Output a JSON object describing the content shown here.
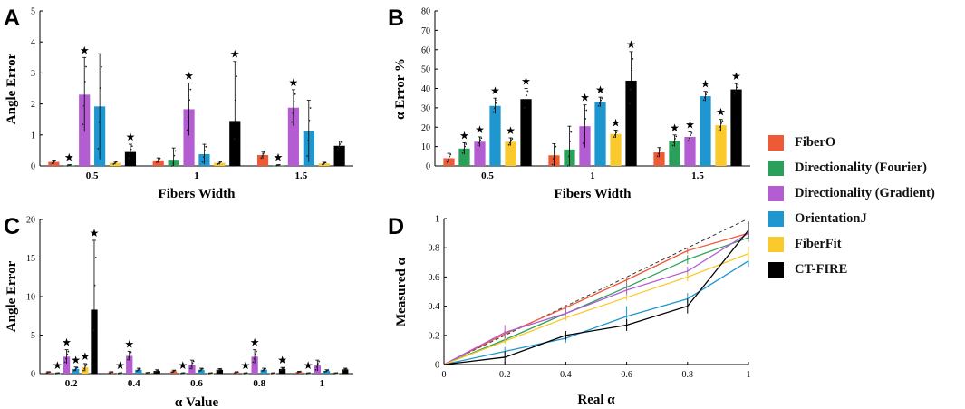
{
  "colors": {
    "FiberO": "#EE5A36",
    "Directionality (Fourier)": "#2BA05B",
    "Directionality (Gradient)": "#B45CD2",
    "OrientationJ": "#1E97D0",
    "FiberFit": "#FAC92C",
    "CT-FIRE": "#000000"
  },
  "legend": [
    "FiberO",
    "Directionality (Fourier)",
    "Directionality (Gradient)",
    "OrientationJ",
    "FiberFit",
    "CT-FIRE"
  ],
  "chart_data": [
    {
      "id": "A",
      "panel_label": "A",
      "type": "bar",
      "xlabel": "Fibers Width",
      "ylabel": "Angle Error",
      "ylim": [
        0,
        5
      ],
      "yticks": [
        0,
        1,
        2,
        3,
        4,
        5
      ],
      "categories": [
        "0.5",
        "1",
        "1.5"
      ],
      "series": [
        {
          "name": "FiberO",
          "values": [
            0.13,
            0.18,
            0.35
          ],
          "errors": [
            0.06,
            0.08,
            0.12
          ],
          "stars": [
            false,
            false,
            false
          ]
        },
        {
          "name": "Directionality (Fourier)",
          "values": [
            0.02,
            0.2,
            0.02
          ],
          "errors": [
            0.02,
            0.38,
            0.02
          ],
          "stars": [
            true,
            false,
            true
          ]
        },
        {
          "name": "Directionality (Gradient)",
          "values": [
            2.3,
            1.83,
            1.88
          ],
          "errors": [
            1.2,
            0.85,
            0.58
          ],
          "stars": [
            true,
            true,
            true
          ]
        },
        {
          "name": "OrientationJ",
          "values": [
            1.92,
            0.38,
            1.12
          ],
          "errors": [
            1.7,
            0.32,
            1.0
          ],
          "stars": [
            false,
            false,
            false
          ]
        },
        {
          "name": "FiberFit",
          "values": [
            0.1,
            0.1,
            0.08
          ],
          "errors": [
            0.05,
            0.05,
            0.04
          ],
          "stars": [
            false,
            false,
            false
          ]
        },
        {
          "name": "CT-FIRE",
          "values": [
            0.45,
            1.45,
            0.65
          ],
          "errors": [
            0.25,
            1.92,
            0.15
          ],
          "stars": [
            true,
            true,
            false
          ]
        }
      ]
    },
    {
      "id": "B",
      "panel_label": "B",
      "type": "bar",
      "xlabel": "Fibers Width",
      "ylabel": "α Error %",
      "ylim": [
        0,
        80
      ],
      "yticks": [
        0,
        10,
        20,
        30,
        40,
        50,
        60,
        70,
        80
      ],
      "categories": [
        "0.5",
        "1",
        "1.5"
      ],
      "series": [
        {
          "name": "FiberO",
          "values": [
            4,
            5.5,
            7
          ],
          "errors": [
            2.5,
            6,
            2.5
          ],
          "stars": [
            false,
            false,
            false
          ]
        },
        {
          "name": "Directionality (Fourier)",
          "values": [
            9,
            8.5,
            13
          ],
          "errors": [
            3,
            12,
            3
          ],
          "stars": [
            true,
            false,
            true
          ]
        },
        {
          "name": "Directionality (Gradient)",
          "values": [
            12.5,
            20.5,
            15
          ],
          "errors": [
            2.5,
            11,
            2.5
          ],
          "stars": [
            true,
            true,
            true
          ]
        },
        {
          "name": "OrientationJ",
          "values": [
            31,
            33,
            36
          ],
          "errors": [
            4,
            2.5,
            2.5
          ],
          "stars": [
            true,
            true,
            true
          ]
        },
        {
          "name": "FiberFit",
          "values": [
            12.5,
            16.5,
            21
          ],
          "errors": [
            2,
            2,
            3
          ],
          "stars": [
            true,
            true,
            true
          ]
        },
        {
          "name": "CT-FIRE",
          "values": [
            34.5,
            44,
            39.5
          ],
          "errors": [
            5.5,
            15,
            3
          ],
          "stars": [
            true,
            true,
            true
          ]
        }
      ]
    },
    {
      "id": "C",
      "panel_label": "C",
      "type": "bar",
      "xlabel": "α Value",
      "ylabel": "Angle Error",
      "ylim": [
        0,
        20
      ],
      "yticks": [
        0,
        5,
        10,
        15,
        20
      ],
      "categories": [
        "0.2",
        "0.4",
        "0.6",
        "0.8",
        "1"
      ],
      "series": [
        {
          "name": "FiberO",
          "values": [
            0.15,
            0.15,
            0.3,
            0.15,
            0.2
          ],
          "errors": [
            0.1,
            0.1,
            0.15,
            0.1,
            0.1
          ],
          "stars": [
            false,
            false,
            false,
            false,
            false
          ]
        },
        {
          "name": "Directionality (Fourier)",
          "values": [
            0.05,
            0.05,
            0.05,
            0.05,
            0.05
          ],
          "errors": [
            0.05,
            0.05,
            0.05,
            0.05,
            0.05
          ],
          "stars": [
            true,
            true,
            true,
            true,
            true
          ]
        },
        {
          "name": "Directionality (Gradient)",
          "values": [
            2.2,
            2.3,
            1.15,
            2.2,
            1.05
          ],
          "errors": [
            0.9,
            0.6,
            0.6,
            0.9,
            0.7
          ],
          "stars": [
            true,
            true,
            false,
            true,
            false
          ]
        },
        {
          "name": "OrientationJ",
          "values": [
            0.6,
            0.5,
            0.5,
            0.5,
            0.35
          ],
          "errors": [
            0.25,
            0.2,
            0.2,
            0.2,
            0.15
          ],
          "stars": [
            true,
            false,
            false,
            false,
            false
          ]
        },
        {
          "name": "FiberFit",
          "values": [
            0.8,
            0.1,
            0.05,
            0.05,
            0.05
          ],
          "errors": [
            0.5,
            0.05,
            0.05,
            0.05,
            0.05
          ],
          "stars": [
            true,
            false,
            false,
            false,
            false
          ]
        },
        {
          "name": "CT-FIRE",
          "values": [
            8.3,
            0.35,
            0.5,
            0.6,
            0.55
          ],
          "errors": [
            9.0,
            0.15,
            0.15,
            0.2,
            0.15
          ],
          "stars": [
            true,
            false,
            false,
            true,
            false
          ]
        }
      ]
    },
    {
      "id": "D",
      "panel_label": "D",
      "type": "line",
      "xlabel": "Real α",
      "ylabel": "Measured α",
      "xlim": [
        0,
        1
      ],
      "ylim": [
        0,
        1
      ],
      "xticks": [
        0,
        0.2,
        0.4,
        0.6,
        0.8,
        1
      ],
      "yticks": [
        0,
        0.2,
        0.4,
        0.6,
        0.8,
        1
      ],
      "x": [
        0,
        0.2,
        0.4,
        0.6,
        0.8,
        1
      ],
      "reference": {
        "name": "identity",
        "values": [
          0,
          0.2,
          0.4,
          0.6,
          0.8,
          1
        ]
      },
      "series": [
        {
          "name": "FiberO",
          "values": [
            0,
            0.21,
            0.39,
            0.58,
            0.78,
            0.9
          ],
          "errors": [
            0,
            0.02,
            0.02,
            0.02,
            0.02,
            0.03
          ]
        },
        {
          "name": "Directionality (Fourier)",
          "values": [
            0,
            0.17,
            0.35,
            0.53,
            0.72,
            0.87
          ],
          "errors": [
            0,
            0.02,
            0.02,
            0.03,
            0.03,
            0.03
          ]
        },
        {
          "name": "Directionality (Gradient)",
          "values": [
            0,
            0.22,
            0.35,
            0.51,
            0.64,
            0.9
          ],
          "errors": [
            0,
            0.05,
            0.04,
            0.04,
            0.03,
            0.05
          ]
        },
        {
          "name": "OrientationJ",
          "values": [
            0,
            0.09,
            0.18,
            0.33,
            0.45,
            0.71
          ],
          "errors": [
            0,
            0.03,
            0.03,
            0.07,
            0.04,
            0.04
          ]
        },
        {
          "name": "FiberFit",
          "values": [
            0,
            0.16,
            0.32,
            0.46,
            0.6,
            0.76
          ],
          "errors": [
            0,
            0.02,
            0.02,
            0.02,
            0.03,
            0.05
          ]
        },
        {
          "name": "CT-FIRE",
          "values": [
            0,
            0.05,
            0.2,
            0.27,
            0.4,
            0.92
          ],
          "errors": [
            0,
            0.04,
            0.03,
            0.04,
            0.05,
            0.06
          ]
        }
      ]
    }
  ]
}
